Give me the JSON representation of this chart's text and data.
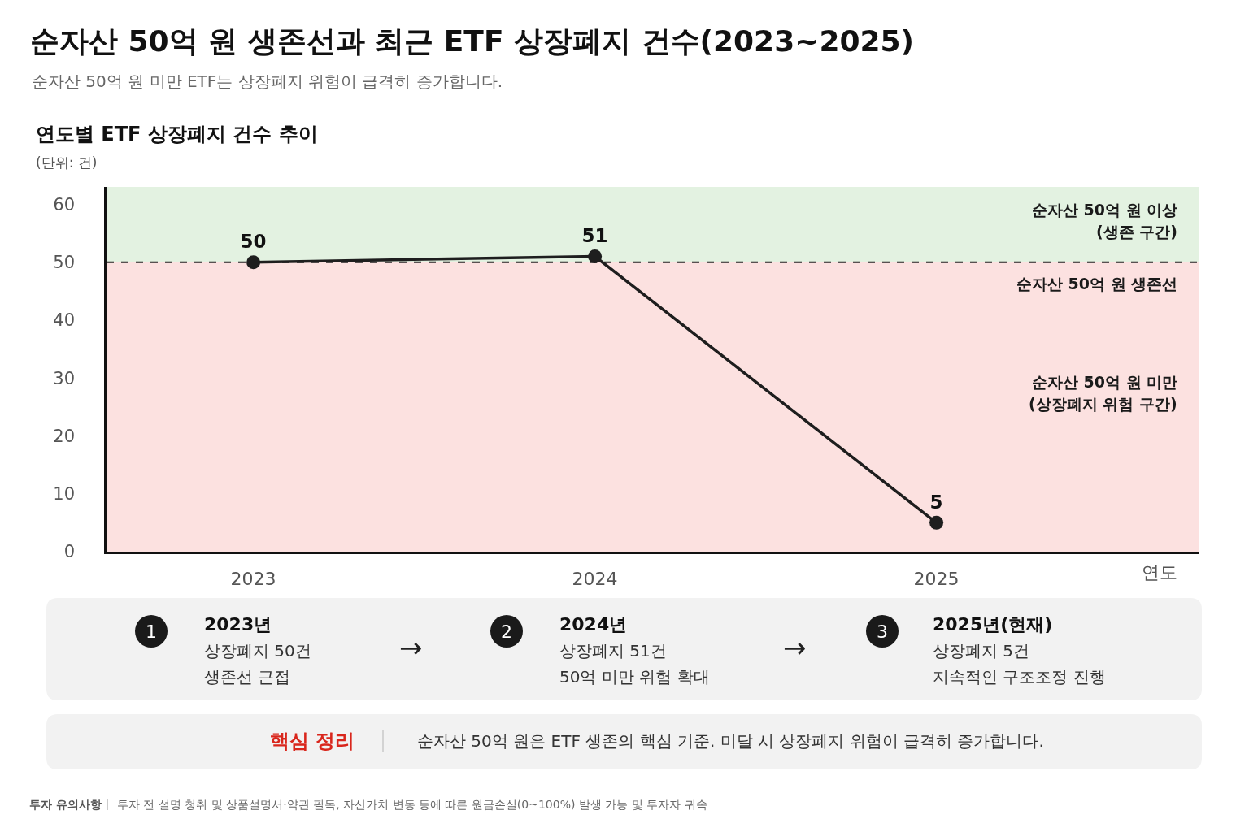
{
  "chart_data": {
    "type": "line",
    "title": "순자산 50억 원 생존선과 최근 ETF 상장폐지 건수(2023~2025)",
    "subtitle": "순자산 50억 원 미만 ETF는 상장폐지 위험이 급격히 증가합니다.",
    "xlabel": "연도",
    "ylabel": "(단위: 건)",
    "categories": [
      "2023",
      "2024",
      "2025"
    ],
    "series": [
      {
        "color": "#1e1e1e",
        "values": [
          50,
          51,
          5
        ]
      }
    ],
    "ylim": [
      0,
      63
    ],
    "yticks": [
      0,
      10,
      20,
      30,
      40,
      50,
      60
    ],
    "marker": "circle",
    "line_style": "solid",
    "data_labels": true,
    "ref_lines": [
      {
        "axis": "y",
        "value": 50,
        "label": "순자산 50억 원 생존선",
        "color": "#222222",
        "line_style": "dashed"
      }
    ],
    "bands": [
      {
        "axis": "y",
        "from": 50,
        "to": 63,
        "label": "순자산 50억 원 이상\n(생존 구간)",
        "color": "#e3f2e1"
      },
      {
        "axis": "y",
        "from": 0,
        "to": 50,
        "label": "순자산 50억 원 미만\n(상장폐지 위험 구간)",
        "color": "#fce1e0"
      }
    ],
    "annotations": [
      "연도별 ETF 상장폐지 건수 추이",
      "1",
      "2023년",
      "상장폐지 50건\n생존선 근접",
      "→",
      "2",
      "2024년",
      "상장폐지 51건\n50억 미만 위험 확대",
      "→",
      "3",
      "2025년(현재)",
      "상장폐지 5건\n지속적인 구조조정 진행",
      "핵심 정리",
      "순자산 50억 원은 ETF 생존의 핵심 기준. 미달 시 상장폐지 위험이 급격히 증가합니다.",
      "투자 유의사항",
      "투자 전 설명 청취 및 상품설명서·약관 필독, 자산가치 변동 등에 따른 원금손실(0~100%) 발생 가능 및 투자자 귀속"
    ]
  }
}
